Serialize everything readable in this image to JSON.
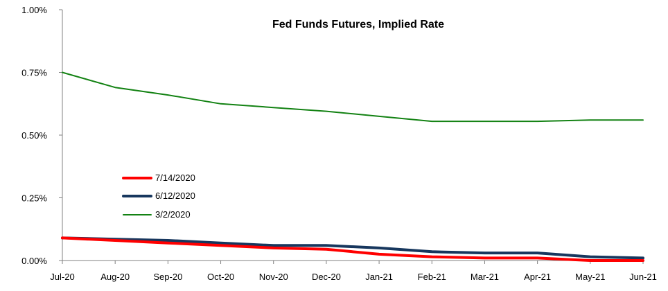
{
  "chart_data": {
    "type": "line",
    "title": "Fed Funds Futures, Implied Rate",
    "xlabel": "",
    "ylabel": "",
    "categories": [
      "Jul-20",
      "Aug-20",
      "Sep-20",
      "Oct-20",
      "Nov-20",
      "Dec-20",
      "Jan-21",
      "Feb-21",
      "Mar-21",
      "Apr-21",
      "May-21",
      "Jun-21"
    ],
    "y_ticks": [
      "0.00%",
      "0.25%",
      "0.50%",
      "0.75%",
      "1.00%"
    ],
    "ylim": [
      0,
      1.0
    ],
    "y_unit": "%",
    "grid": false,
    "legend_position": "left",
    "series": [
      {
        "name": "7/14/2020",
        "color": "#ff0000",
        "values": [
          0.09,
          0.08,
          0.07,
          0.06,
          0.05,
          0.045,
          0.025,
          0.015,
          0.01,
          0.01,
          0.0,
          0.0
        ]
      },
      {
        "name": "6/12/2020",
        "color": "#17375e",
        "values": [
          0.09,
          0.085,
          0.08,
          0.07,
          0.06,
          0.06,
          0.05,
          0.035,
          0.03,
          0.03,
          0.015,
          0.01
        ]
      },
      {
        "name": "3/2/2020",
        "color": "#138213",
        "values": [
          0.75,
          0.69,
          0.66,
          0.625,
          0.61,
          0.595,
          0.575,
          0.555,
          0.555,
          0.555,
          0.56,
          0.56
        ]
      }
    ]
  }
}
